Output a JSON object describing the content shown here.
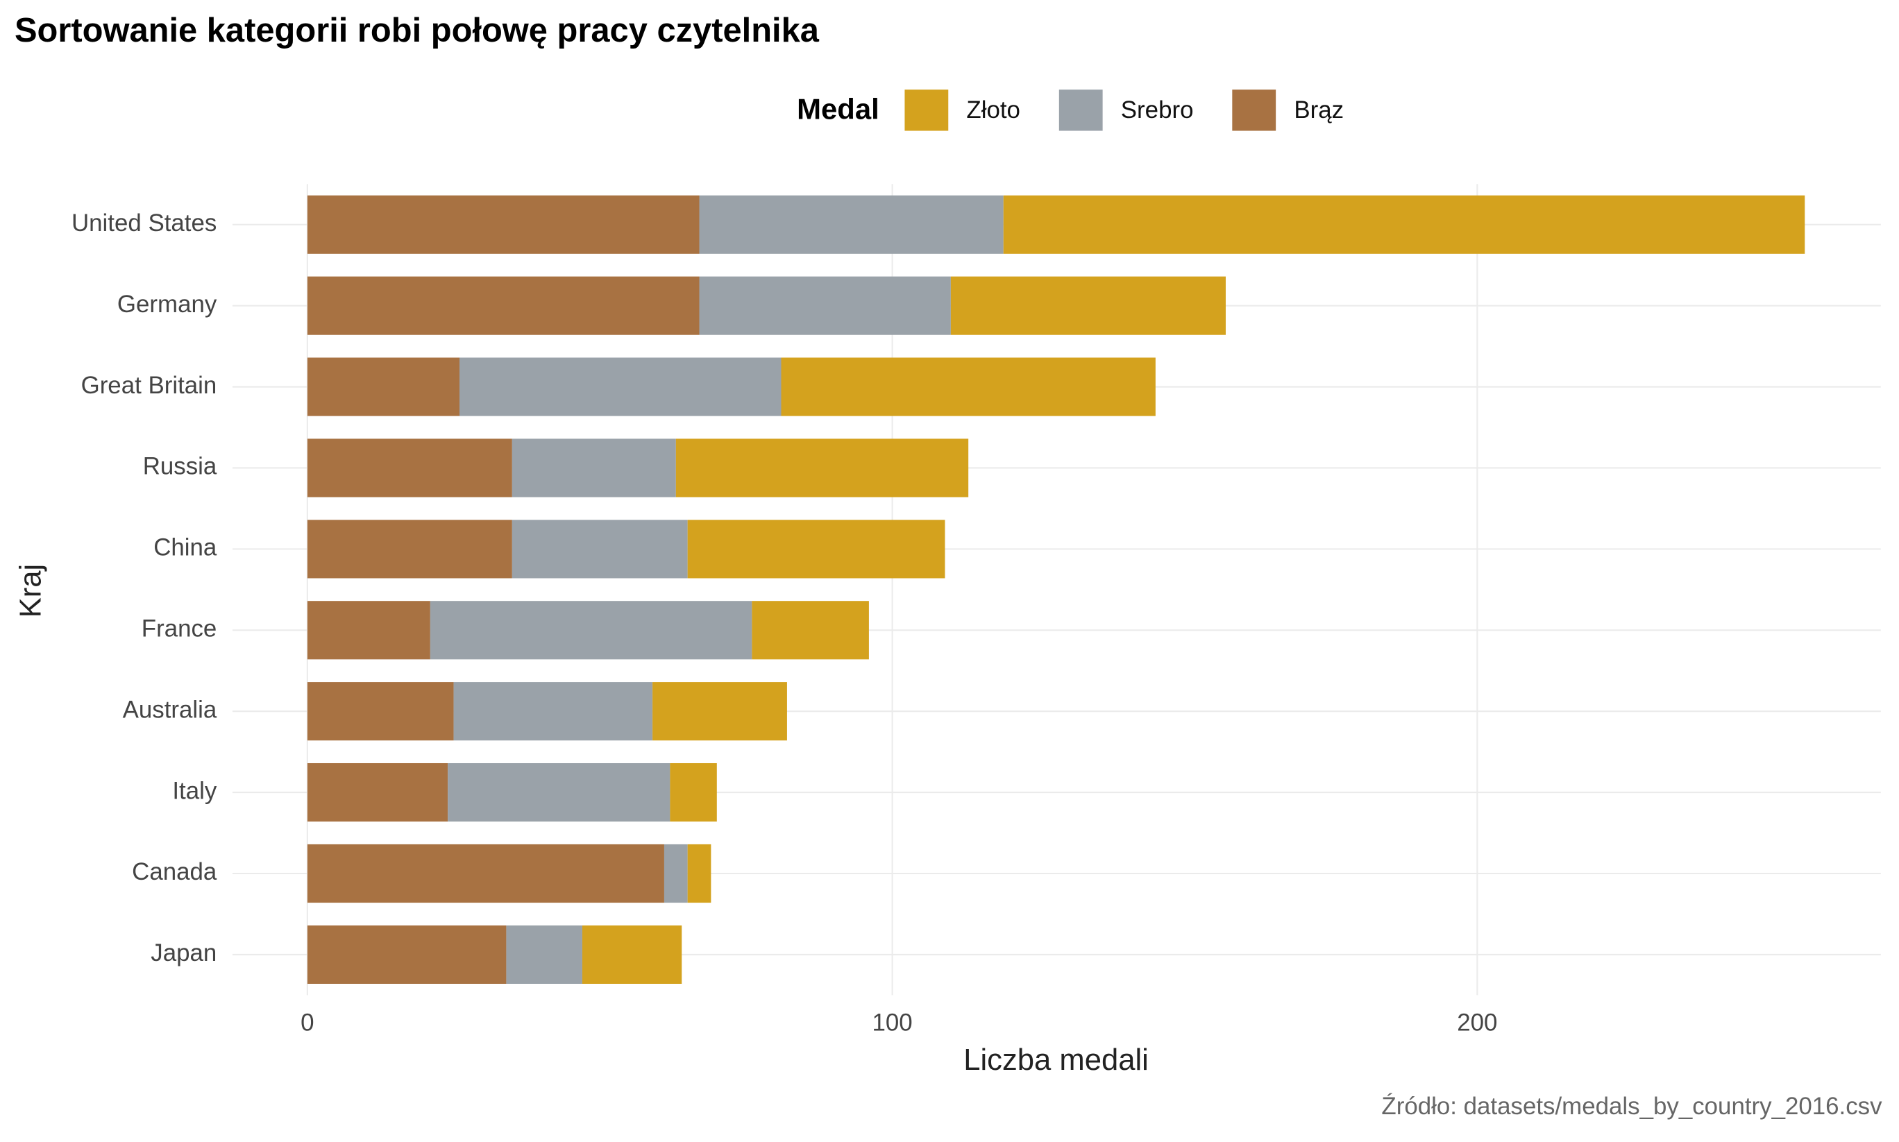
{
  "chart_data": {
    "type": "stacked-barh",
    "title": "Sortowanie kategorii robi połowę pracy czytelnika",
    "legend_title": "Medal",
    "x_label": "Liczba medali",
    "y_label": "Kraj",
    "caption": "Źródło: datasets/medals_by_country_2016.csv",
    "categories": [
      "United States",
      "Germany",
      "Great Britain",
      "Russia",
      "China",
      "France",
      "Australia",
      "Italy",
      "Canada",
      "Japan"
    ],
    "series": [
      {
        "name": "Złoto",
        "color": "#d4a21e",
        "values": [
          137,
          47,
          64,
          50,
          44,
          20,
          23,
          8,
          4,
          17
        ]
      },
      {
        "name": "Srebro",
        "color": "#9aa2a9",
        "values": [
          52,
          43,
          55,
          28,
          30,
          55,
          34,
          38,
          4,
          13
        ]
      },
      {
        "name": "Brąz",
        "color": "#a87242",
        "values": [
          67,
          67,
          26,
          35,
          35,
          21,
          25,
          24,
          61,
          34
        ]
      }
    ],
    "xlim": [
      -12.8,
      269
    ],
    "xticks": [
      0,
      100,
      200
    ],
    "grid": true
  }
}
